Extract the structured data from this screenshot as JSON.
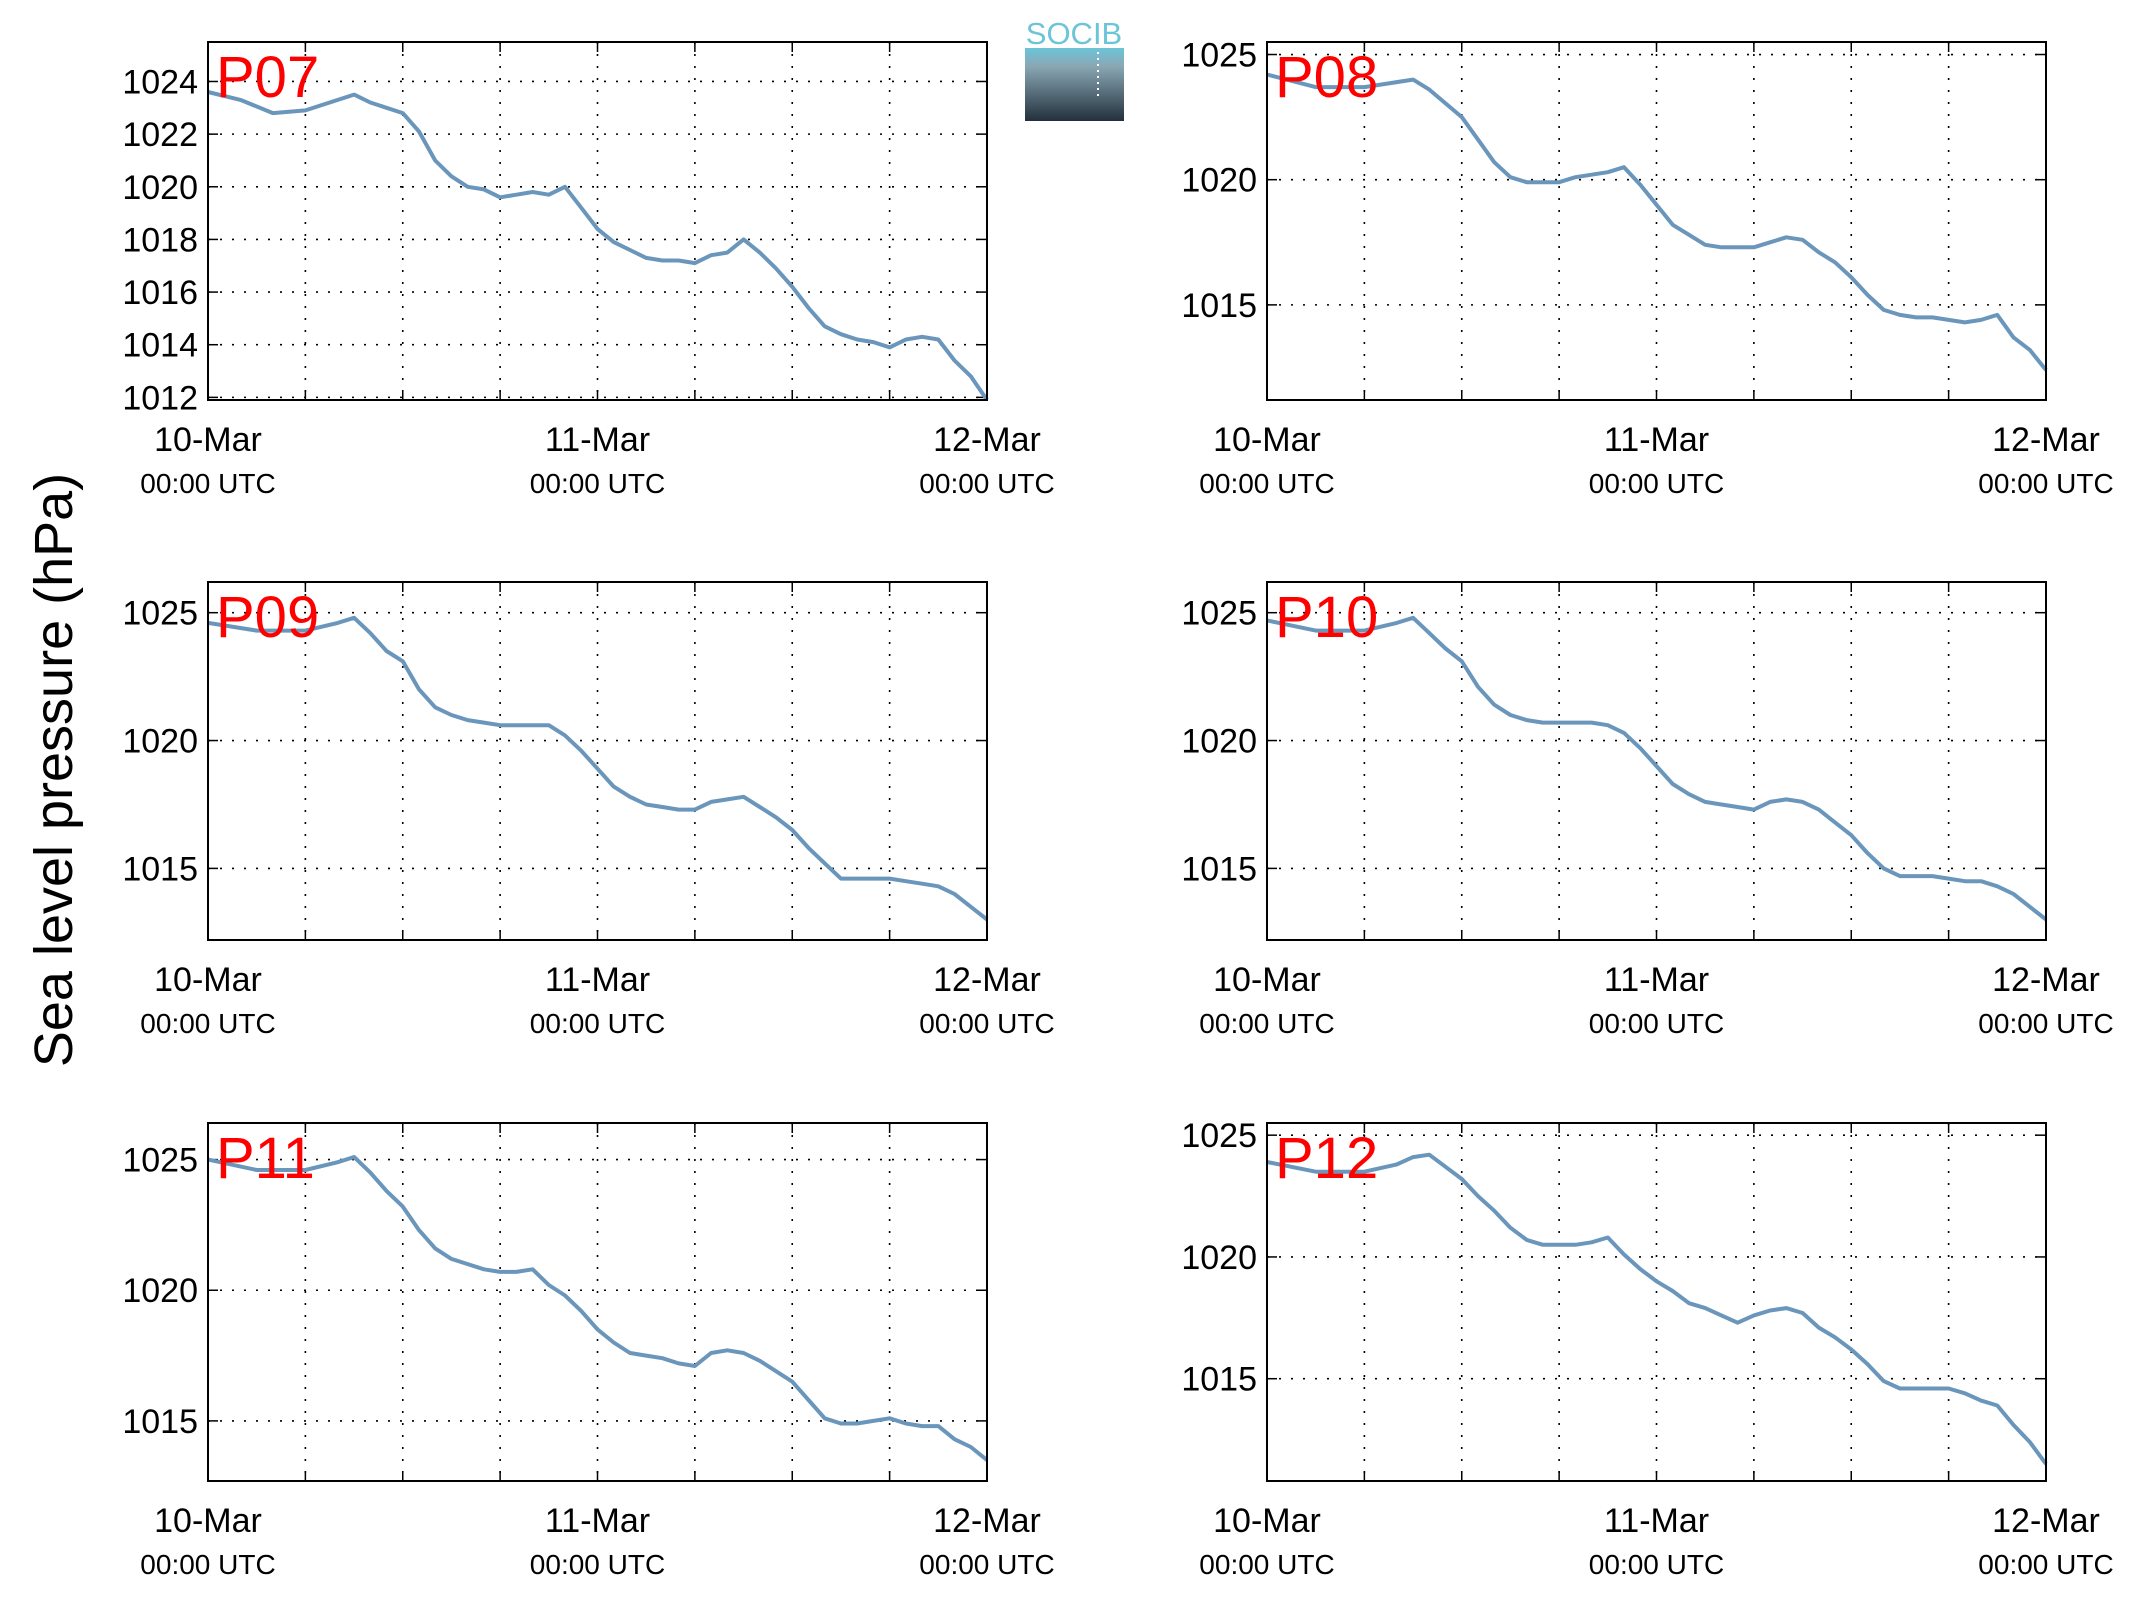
{
  "ylabel": "Sea level pressure (hPa)",
  "logo": {
    "text": "SOCIB",
    "colors": [
      "#6cc4d8",
      "#22303c"
    ]
  },
  "style": {
    "line_color": "#6b96bb",
    "panel_label_color": "#ff0000",
    "grid": "dotted"
  },
  "chart_data": [
    {
      "type": "line",
      "label": "P07",
      "x_range": [
        "2014-03-10 00:00",
        "2014-03-12 00:00"
      ],
      "x_ticks": [
        {
          "top": "10-Mar",
          "bottom": "00:00 UTC"
        },
        {
          "top": "11-Mar",
          "bottom": "00:00 UTC"
        },
        {
          "top": "12-Mar",
          "bottom": "00:00 UTC"
        }
      ],
      "x_minor_ticks_hours": [
        6,
        12,
        18,
        30,
        36,
        42
      ],
      "ylim": [
        1011.9,
        1025.5
      ],
      "yticks": [
        1012,
        1014,
        1016,
        1018,
        1020,
        1022,
        1024
      ],
      "points": [
        [
          0,
          1023.6
        ],
        [
          2,
          1023.3
        ],
        [
          4,
          1022.8
        ],
        [
          6,
          1022.9
        ],
        [
          8,
          1023.3
        ],
        [
          9,
          1023.5
        ],
        [
          10,
          1023.2
        ],
        [
          12,
          1022.8
        ],
        [
          13,
          1022.1
        ],
        [
          14,
          1021.0
        ],
        [
          15,
          1020.4
        ],
        [
          16,
          1020.0
        ],
        [
          17,
          1019.9
        ],
        [
          18,
          1019.6
        ],
        [
          19,
          1019.7
        ],
        [
          20,
          1019.8
        ],
        [
          21,
          1019.7
        ],
        [
          22,
          1020.0
        ],
        [
          23,
          1019.2
        ],
        [
          24,
          1018.4
        ],
        [
          25,
          1017.9
        ],
        [
          26,
          1017.6
        ],
        [
          27,
          1017.3
        ],
        [
          28,
          1017.2
        ],
        [
          29,
          1017.2
        ],
        [
          30,
          1017.1
        ],
        [
          31,
          1017.4
        ],
        [
          32,
          1017.5
        ],
        [
          33,
          1018.0
        ],
        [
          34,
          1017.5
        ],
        [
          35,
          1016.9
        ],
        [
          36,
          1016.2
        ],
        [
          37,
          1015.4
        ],
        [
          38,
          1014.7
        ],
        [
          39,
          1014.4
        ],
        [
          40,
          1014.2
        ],
        [
          41,
          1014.1
        ],
        [
          42,
          1013.9
        ],
        [
          43,
          1014.2
        ],
        [
          44,
          1014.3
        ],
        [
          45,
          1014.2
        ],
        [
          46,
          1013.4
        ],
        [
          47,
          1012.8
        ],
        [
          48,
          1011.9
        ]
      ]
    },
    {
      "type": "line",
      "label": "P08",
      "x_range": [
        "2014-03-10 00:00",
        "2014-03-12 00:00"
      ],
      "x_ticks": [
        {
          "top": "10-Mar",
          "bottom": "00:00 UTC"
        },
        {
          "top": "11-Mar",
          "bottom": "00:00 UTC"
        },
        {
          "top": "12-Mar",
          "bottom": "00:00 UTC"
        }
      ],
      "x_minor_ticks_hours": [
        6,
        12,
        18,
        30,
        36,
        42
      ],
      "ylim": [
        1011.2,
        1025.5
      ],
      "yticks": [
        1015,
        1020,
        1025
      ],
      "points": [
        [
          0,
          1024.2
        ],
        [
          3,
          1023.7
        ],
        [
          6,
          1023.7
        ],
        [
          8,
          1023.9
        ],
        [
          9,
          1024.0
        ],
        [
          10,
          1023.6
        ],
        [
          12,
          1022.5
        ],
        [
          13,
          1021.6
        ],
        [
          14,
          1020.7
        ],
        [
          15,
          1020.1
        ],
        [
          16,
          1019.9
        ],
        [
          17,
          1019.9
        ],
        [
          18,
          1019.9
        ],
        [
          19,
          1020.1
        ],
        [
          20,
          1020.2
        ],
        [
          21,
          1020.3
        ],
        [
          22,
          1020.5
        ],
        [
          23,
          1019.8
        ],
        [
          24,
          1019.0
        ],
        [
          25,
          1018.2
        ],
        [
          26,
          1017.8
        ],
        [
          27,
          1017.4
        ],
        [
          28,
          1017.3
        ],
        [
          29,
          1017.3
        ],
        [
          30,
          1017.3
        ],
        [
          31,
          1017.5
        ],
        [
          32,
          1017.7
        ],
        [
          33,
          1017.6
        ],
        [
          34,
          1017.1
        ],
        [
          35,
          1016.7
        ],
        [
          36,
          1016.1
        ],
        [
          37,
          1015.4
        ],
        [
          38,
          1014.8
        ],
        [
          39,
          1014.6
        ],
        [
          40,
          1014.5
        ],
        [
          41,
          1014.5
        ],
        [
          42,
          1014.4
        ],
        [
          43,
          1014.3
        ],
        [
          44,
          1014.4
        ],
        [
          45,
          1014.6
        ],
        [
          46,
          1013.7
        ],
        [
          47,
          1013.2
        ],
        [
          48,
          1012.4
        ]
      ]
    },
    {
      "type": "line",
      "label": "P09",
      "x_range": [
        "2014-03-10 00:00",
        "2014-03-12 00:00"
      ],
      "x_ticks": [
        {
          "top": "10-Mar",
          "bottom": "00:00 UTC"
        },
        {
          "top": "11-Mar",
          "bottom": "00:00 UTC"
        },
        {
          "top": "12-Mar",
          "bottom": "00:00 UTC"
        }
      ],
      "x_minor_ticks_hours": [
        6,
        12,
        18,
        30,
        36,
        42
      ],
      "ylim": [
        1012.2,
        1026.2
      ],
      "yticks": [
        1015,
        1020,
        1025
      ],
      "points": [
        [
          0,
          1024.6
        ],
        [
          3,
          1024.3
        ],
        [
          6,
          1024.3
        ],
        [
          8,
          1024.6
        ],
        [
          9,
          1024.8
        ],
        [
          10,
          1024.2
        ],
        [
          11,
          1023.5
        ],
        [
          12,
          1023.1
        ],
        [
          13,
          1022.0
        ],
        [
          14,
          1021.3
        ],
        [
          15,
          1021.0
        ],
        [
          16,
          1020.8
        ],
        [
          17,
          1020.7
        ],
        [
          18,
          1020.6
        ],
        [
          19,
          1020.6
        ],
        [
          20,
          1020.6
        ],
        [
          21,
          1020.6
        ],
        [
          22,
          1020.2
        ],
        [
          23,
          1019.6
        ],
        [
          24,
          1018.9
        ],
        [
          25,
          1018.2
        ],
        [
          26,
          1017.8
        ],
        [
          27,
          1017.5
        ],
        [
          28,
          1017.4
        ],
        [
          29,
          1017.3
        ],
        [
          30,
          1017.3
        ],
        [
          31,
          1017.6
        ],
        [
          32,
          1017.7
        ],
        [
          33,
          1017.8
        ],
        [
          34,
          1017.4
        ],
        [
          35,
          1017.0
        ],
        [
          36,
          1016.5
        ],
        [
          37,
          1015.8
        ],
        [
          38,
          1015.2
        ],
        [
          39,
          1014.6
        ],
        [
          40,
          1014.6
        ],
        [
          41,
          1014.6
        ],
        [
          42,
          1014.6
        ],
        [
          43,
          1014.5
        ],
        [
          44,
          1014.4
        ],
        [
          45,
          1014.3
        ],
        [
          46,
          1014.0
        ],
        [
          47,
          1013.5
        ],
        [
          48,
          1013.0
        ]
      ]
    },
    {
      "type": "line",
      "label": "P10",
      "x_range": [
        "2014-03-10 00:00",
        "2014-03-12 00:00"
      ],
      "x_ticks": [
        {
          "top": "10-Mar",
          "bottom": "00:00 UTC"
        },
        {
          "top": "11-Mar",
          "bottom": "00:00 UTC"
        },
        {
          "top": "12-Mar",
          "bottom": "00:00 UTC"
        }
      ],
      "x_minor_ticks_hours": [
        6,
        12,
        18,
        30,
        36,
        42
      ],
      "ylim": [
        1012.2,
        1026.2
      ],
      "yticks": [
        1015,
        1020,
        1025
      ],
      "points": [
        [
          0,
          1024.7
        ],
        [
          3,
          1024.3
        ],
        [
          6,
          1024.3
        ],
        [
          8,
          1024.6
        ],
        [
          9,
          1024.8
        ],
        [
          10,
          1024.2
        ],
        [
          11,
          1023.6
        ],
        [
          12,
          1023.1
        ],
        [
          13,
          1022.1
        ],
        [
          14,
          1021.4
        ],
        [
          15,
          1021.0
        ],
        [
          16,
          1020.8
        ],
        [
          17,
          1020.7
        ],
        [
          18,
          1020.7
        ],
        [
          19,
          1020.7
        ],
        [
          20,
          1020.7
        ],
        [
          21,
          1020.6
        ],
        [
          22,
          1020.3
        ],
        [
          23,
          1019.7
        ],
        [
          24,
          1019.0
        ],
        [
          25,
          1018.3
        ],
        [
          26,
          1017.9
        ],
        [
          27,
          1017.6
        ],
        [
          28,
          1017.5
        ],
        [
          29,
          1017.4
        ],
        [
          30,
          1017.3
        ],
        [
          31,
          1017.6
        ],
        [
          32,
          1017.7
        ],
        [
          33,
          1017.6
        ],
        [
          34,
          1017.3
        ],
        [
          35,
          1016.8
        ],
        [
          36,
          1016.3
        ],
        [
          37,
          1015.6
        ],
        [
          38,
          1015.0
        ],
        [
          39,
          1014.7
        ],
        [
          40,
          1014.7
        ],
        [
          41,
          1014.7
        ],
        [
          42,
          1014.6
        ],
        [
          43,
          1014.5
        ],
        [
          44,
          1014.5
        ],
        [
          45,
          1014.3
        ],
        [
          46,
          1014.0
        ],
        [
          47,
          1013.5
        ],
        [
          48,
          1013.0
        ]
      ]
    },
    {
      "type": "line",
      "label": "P11",
      "x_range": [
        "2014-03-10 00:00",
        "2014-03-12 00:00"
      ],
      "x_ticks": [
        {
          "top": "10-Mar",
          "bottom": "00:00 UTC"
        },
        {
          "top": "11-Mar",
          "bottom": "00:00 UTC"
        },
        {
          "top": "12-Mar",
          "bottom": "00:00 UTC"
        }
      ],
      "x_minor_ticks_hours": [
        6,
        12,
        18,
        30,
        36,
        42
      ],
      "ylim": [
        1012.7,
        1026.4
      ],
      "yticks": [
        1015,
        1020,
        1025
      ],
      "points": [
        [
          0,
          1025.0
        ],
        [
          3,
          1024.6
        ],
        [
          6,
          1024.6
        ],
        [
          8,
          1024.9
        ],
        [
          9,
          1025.1
        ],
        [
          10,
          1024.5
        ],
        [
          11,
          1023.8
        ],
        [
          12,
          1023.2
        ],
        [
          13,
          1022.3
        ],
        [
          14,
          1021.6
        ],
        [
          15,
          1021.2
        ],
        [
          16,
          1021.0
        ],
        [
          17,
          1020.8
        ],
        [
          18,
          1020.7
        ],
        [
          19,
          1020.7
        ],
        [
          20,
          1020.8
        ],
        [
          21,
          1020.2
        ],
        [
          22,
          1019.8
        ],
        [
          23,
          1019.2
        ],
        [
          24,
          1018.5
        ],
        [
          25,
          1018.0
        ],
        [
          26,
          1017.6
        ],
        [
          27,
          1017.5
        ],
        [
          28,
          1017.4
        ],
        [
          29,
          1017.2
        ],
        [
          30,
          1017.1
        ],
        [
          31,
          1017.6
        ],
        [
          32,
          1017.7
        ],
        [
          33,
          1017.6
        ],
        [
          34,
          1017.3
        ],
        [
          35,
          1016.9
        ],
        [
          36,
          1016.5
        ],
        [
          37,
          1015.8
        ],
        [
          38,
          1015.1
        ],
        [
          39,
          1014.9
        ],
        [
          40,
          1014.9
        ],
        [
          41,
          1015.0
        ],
        [
          42,
          1015.1
        ],
        [
          43,
          1014.9
        ],
        [
          44,
          1014.8
        ],
        [
          45,
          1014.8
        ],
        [
          46,
          1014.3
        ],
        [
          47,
          1014.0
        ],
        [
          48,
          1013.5
        ]
      ]
    },
    {
      "type": "line",
      "label": "P12",
      "x_range": [
        "2014-03-10 00:00",
        "2014-03-12 00:00"
      ],
      "x_ticks": [
        {
          "top": "10-Mar",
          "bottom": "00:00 UTC"
        },
        {
          "top": "11-Mar",
          "bottom": "00:00 UTC"
        },
        {
          "top": "12-Mar",
          "bottom": "00:00 UTC"
        }
      ],
      "x_minor_ticks_hours": [
        6,
        12,
        18,
        30,
        36,
        42
      ],
      "ylim": [
        1010.8,
        1025.5
      ],
      "yticks": [
        1015,
        1020,
        1025
      ],
      "points": [
        [
          0,
          1023.9
        ],
        [
          3,
          1023.5
        ],
        [
          6,
          1023.5
        ],
        [
          8,
          1023.8
        ],
        [
          9,
          1024.1
        ],
        [
          10,
          1024.2
        ],
        [
          11,
          1023.7
        ],
        [
          12,
          1023.2
        ],
        [
          13,
          1022.5
        ],
        [
          14,
          1021.9
        ],
        [
          15,
          1021.2
        ],
        [
          16,
          1020.7
        ],
        [
          17,
          1020.5
        ],
        [
          18,
          1020.5
        ],
        [
          19,
          1020.5
        ],
        [
          20,
          1020.6
        ],
        [
          21,
          1020.8
        ],
        [
          22,
          1020.1
        ],
        [
          23,
          1019.5
        ],
        [
          24,
          1019.0
        ],
        [
          25,
          1018.6
        ],
        [
          26,
          1018.1
        ],
        [
          27,
          1017.9
        ],
        [
          28,
          1017.6
        ],
        [
          29,
          1017.3
        ],
        [
          30,
          1017.6
        ],
        [
          31,
          1017.8
        ],
        [
          32,
          1017.9
        ],
        [
          33,
          1017.7
        ],
        [
          34,
          1017.1
        ],
        [
          35,
          1016.7
        ],
        [
          36,
          1016.2
        ],
        [
          37,
          1015.6
        ],
        [
          38,
          1014.9
        ],
        [
          39,
          1014.6
        ],
        [
          40,
          1014.6
        ],
        [
          41,
          1014.6
        ],
        [
          42,
          1014.6
        ],
        [
          43,
          1014.4
        ],
        [
          44,
          1014.1
        ],
        [
          45,
          1013.9
        ],
        [
          46,
          1013.1
        ],
        [
          47,
          1012.4
        ],
        [
          48,
          1011.5
        ]
      ]
    }
  ]
}
